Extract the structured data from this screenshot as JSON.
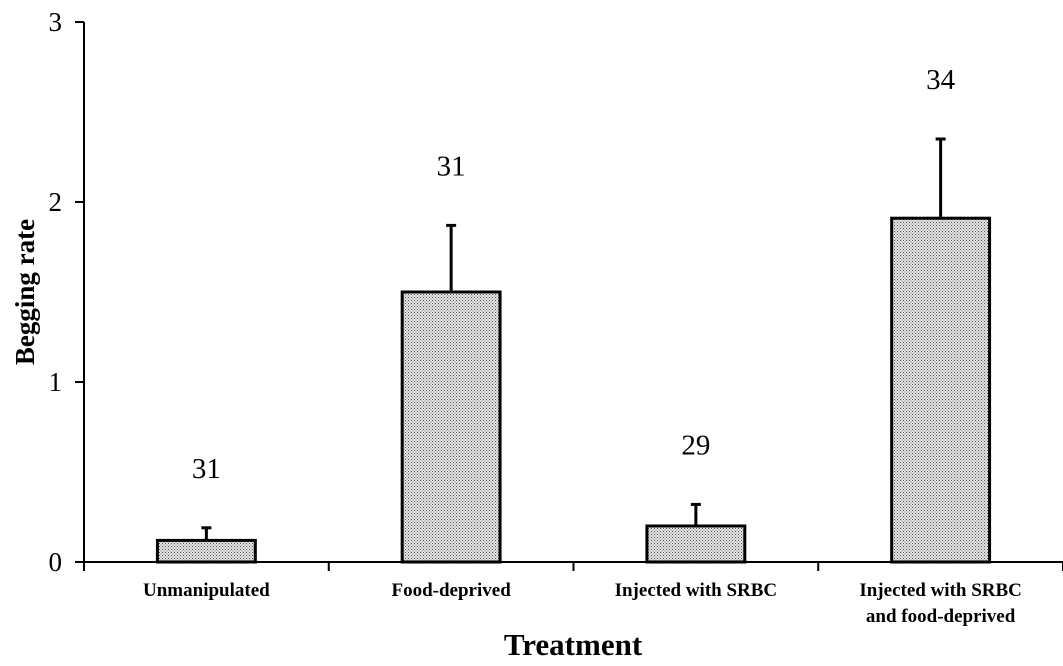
{
  "chart_data": {
    "type": "bar",
    "xlabel": "Treatment",
    "ylabel": "Begging rate",
    "ylim": [
      0,
      3
    ],
    "yticks": [
      "0",
      "1",
      "2",
      "3"
    ],
    "categories": [
      [
        "Unmanipulated"
      ],
      [
        "Food-deprived"
      ],
      [
        "Injected with SRBC"
      ],
      [
        "Injected with SRBC",
        "and food-deprived"
      ]
    ],
    "values": [
      0.12,
      1.5,
      0.2,
      1.91
    ],
    "error_upper": [
      0.07,
      0.37,
      0.12,
      0.44
    ],
    "sample_sizes": [
      "31",
      "31",
      "29",
      "34"
    ],
    "grid": false,
    "legend": "none",
    "bar_pattern": "stippled grey",
    "colors": {
      "bar_fill": "#d2d2d2",
      "stroke": "#000000",
      "background": "#ffffff"
    }
  }
}
